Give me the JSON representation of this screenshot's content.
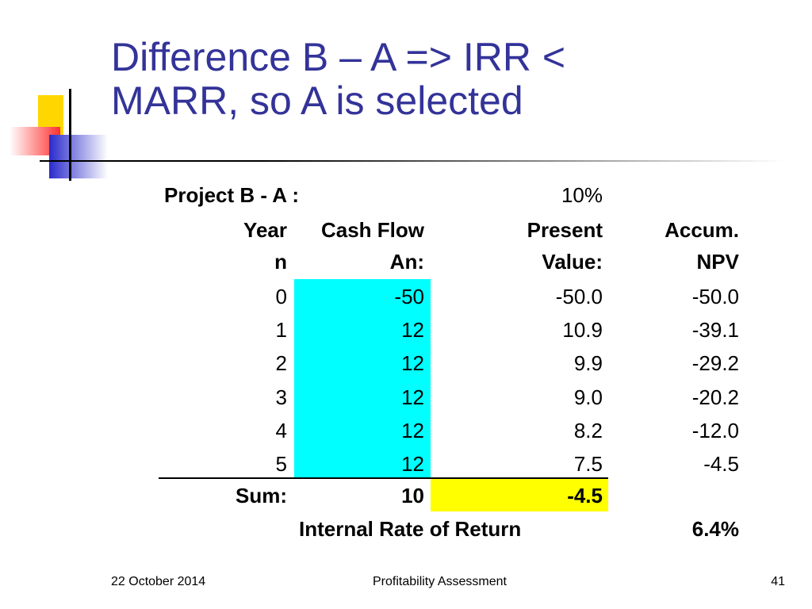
{
  "title": {
    "line1": "Difference B – A => IRR <",
    "line2": "MARR, so A is selected"
  },
  "table": {
    "project_label": "Project B - A :",
    "rate": "10%",
    "header": [
      [
        "Year",
        "Cash Flow",
        "Present",
        "Accum."
      ],
      [
        "n",
        "An:",
        "Value:",
        "NPV"
      ]
    ],
    "rows": [
      [
        "0",
        "-50",
        "-50.0",
        "-50.0"
      ],
      [
        "1",
        "12",
        "10.9",
        "-39.1"
      ],
      [
        "2",
        "12",
        "9.9",
        "-29.2"
      ],
      [
        "3",
        "12",
        "9.0",
        "-20.2"
      ],
      [
        "4",
        "12",
        "8.2",
        "-12.0"
      ],
      [
        "5",
        "12",
        "7.5",
        "-4.5"
      ]
    ],
    "sum": {
      "label": "Sum:",
      "cash_flow": "10",
      "present_value": "-4.5"
    },
    "irr": {
      "label": "Internal Rate of Return",
      "value": "6.4%"
    }
  },
  "footer": {
    "date": "22 October 2014",
    "title": "Profitability Assessment",
    "page": "41"
  }
}
